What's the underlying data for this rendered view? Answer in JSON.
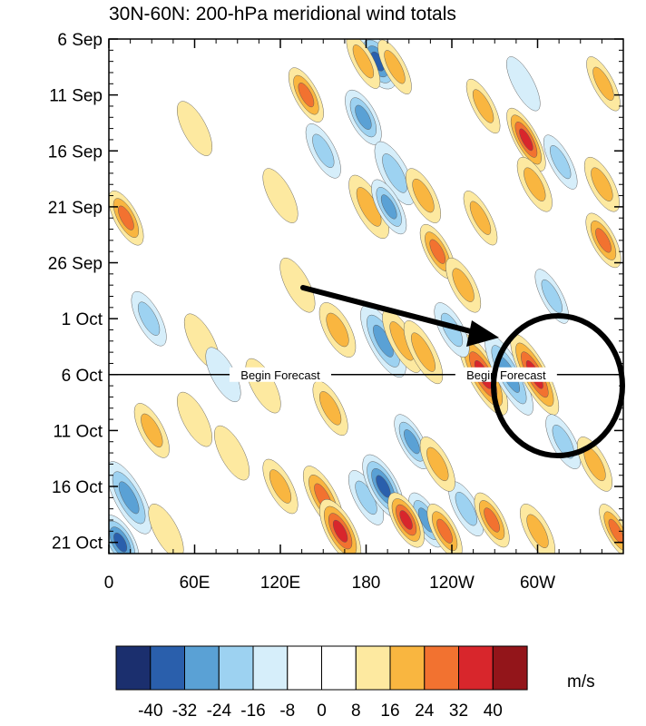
{
  "chart_data": {
    "type": "heatmap",
    "title": "30N-60N: 200-hPa meridional wind totals",
    "xlabel": "",
    "ylabel": "",
    "x_ticks": [
      "0",
      "60E",
      "120E",
      "180",
      "120W",
      "60W"
    ],
    "x_tick_lon": [
      0,
      60,
      120,
      180,
      240,
      300
    ],
    "xlim": [
      0,
      360
    ],
    "y_ticks": [
      "6 Sep",
      "11 Sep",
      "16 Sep",
      "21 Sep",
      "26 Sep",
      "1 Oct",
      "6 Oct",
      "11 Oct",
      "16 Oct",
      "21 Oct"
    ],
    "y_tick_day": [
      0,
      5,
      10,
      15,
      20,
      25,
      30,
      35,
      40,
      45
    ],
    "ylim_days": [
      0,
      46
    ],
    "forecast_line": {
      "day": 30,
      "labels": [
        "Begin Forecast",
        "Begin Forecast"
      ],
      "label_lon": [
        120,
        278
      ]
    },
    "units": "m/s",
    "colorbar": {
      "levels": [
        "-40",
        "-32",
        "-24",
        "-16",
        "-8",
        "0",
        "8",
        "16",
        "24",
        "32",
        "40"
      ],
      "colors": [
        "#1b2f6e",
        "#2a5fac",
        "#5aa1d5",
        "#9dd2f1",
        "#d6eefa",
        "#ffffff",
        "#ffffff",
        "#fde9a0",
        "#f9b640",
        "#f27230",
        "#d8262c",
        "#93151a"
      ]
    },
    "features": [
      {
        "lon": 262,
        "day": 30,
        "v": 34,
        "len": 4.5,
        "wid": 11
      },
      {
        "lon": 280,
        "day": 30,
        "v": -30,
        "len": 4.5,
        "wid": 10
      },
      {
        "lon": 298,
        "day": 30,
        "v": 38,
        "len": 4.5,
        "wid": 10
      },
      {
        "lon": 192,
        "day": 27,
        "v": -30,
        "len": 4,
        "wid": 11
      },
      {
        "lon": 205,
        "day": 27,
        "v": 22,
        "len": 3.5,
        "wid": 9
      },
      {
        "lon": 220,
        "day": 28,
        "v": 22,
        "len": 3.5,
        "wid": 9
      },
      {
        "lon": 160,
        "day": 26,
        "v": 18,
        "len": 3,
        "wid": 10
      },
      {
        "lon": 240,
        "day": 26,
        "v": -18,
        "len": 3,
        "wid": 9
      },
      {
        "lon": 188,
        "day": 2,
        "v": -36,
        "len": 3,
        "wid": 12
      },
      {
        "lon": 178,
        "day": 2,
        "v": 16,
        "len": 3,
        "wid": 8
      },
      {
        "lon": 200,
        "day": 2.5,
        "v": 20,
        "len": 3,
        "wid": 8
      },
      {
        "lon": 138,
        "day": 5,
        "v": 30,
        "len": 3,
        "wid": 9
      },
      {
        "lon": 178,
        "day": 7,
        "v": -30,
        "len": 3,
        "wid": 10
      },
      {
        "lon": 150,
        "day": 10,
        "v": -18,
        "len": 3,
        "wid": 9
      },
      {
        "lon": 200,
        "day": 12,
        "v": -22,
        "len": 3.5,
        "wid": 10
      },
      {
        "lon": 182,
        "day": 15,
        "v": 22,
        "len": 3.5,
        "wid": 10
      },
      {
        "lon": 220,
        "day": 14,
        "v": 18,
        "len": 3,
        "wid": 9
      },
      {
        "lon": 196,
        "day": 15,
        "v": -24,
        "len": 3,
        "wid": 9
      },
      {
        "lon": 292,
        "day": 9,
        "v": 32,
        "len": 3.5,
        "wid": 9
      },
      {
        "lon": 298,
        "day": 13,
        "v": 18,
        "len": 3,
        "wid": 9
      },
      {
        "lon": 316,
        "day": 11,
        "v": -22,
        "len": 3,
        "wid": 8
      },
      {
        "lon": 346,
        "day": 4,
        "v": 22,
        "len": 3,
        "wid": 8
      },
      {
        "lon": 345,
        "day": 13,
        "v": 22,
        "len": 3,
        "wid": 9
      },
      {
        "lon": 346,
        "day": 18,
        "v": 28,
        "len": 3,
        "wid": 9
      },
      {
        "lon": 310,
        "day": 23,
        "v": -18,
        "len": 3,
        "wid": 8
      },
      {
        "lon": 260,
        "day": 16,
        "v": 18,
        "len": 3,
        "wid": 8
      },
      {
        "lon": 230,
        "day": 19,
        "v": 24,
        "len": 3,
        "wid": 9
      },
      {
        "lon": 248,
        "day": 22,
        "v": 22,
        "len": 3,
        "wid": 9
      },
      {
        "lon": 120,
        "day": 14,
        "v": 14,
        "len": 3,
        "wid": 9
      },
      {
        "lon": 132,
        "day": 22,
        "v": 14,
        "len": 3,
        "wid": 9
      },
      {
        "lon": 262,
        "day": 6,
        "v": 16,
        "len": 3,
        "wid": 8
      },
      {
        "lon": 290,
        "day": 4,
        "v": -14,
        "len": 3,
        "wid": 8
      },
      {
        "lon": 12,
        "day": 16,
        "v": 30,
        "len": 3,
        "wid": 9
      },
      {
        "lon": 60,
        "day": 8,
        "v": 12,
        "len": 3,
        "wid": 9
      },
      {
        "lon": 28,
        "day": 25,
        "v": -18,
        "len": 3,
        "wid": 9
      },
      {
        "lon": 65,
        "day": 27,
        "v": 14,
        "len": 3,
        "wid": 9
      },
      {
        "lon": 30,
        "day": 35,
        "v": 20,
        "len": 3,
        "wid": 9
      },
      {
        "lon": 60,
        "day": 34,
        "v": 14,
        "len": 3,
        "wid": 9
      },
      {
        "lon": 14,
        "day": 41,
        "v": -30,
        "len": 4,
        "wid": 11
      },
      {
        "lon": 8,
        "day": 45,
        "v": -38,
        "len": 3,
        "wid": 11
      },
      {
        "lon": 40,
        "day": 44,
        "v": 12,
        "len": 3,
        "wid": 9
      },
      {
        "lon": 86,
        "day": 37,
        "v": 14,
        "len": 3,
        "wid": 9
      },
      {
        "lon": 120,
        "day": 40,
        "v": 18,
        "len": 3,
        "wid": 9
      },
      {
        "lon": 150,
        "day": 41,
        "v": 28,
        "len": 3.5,
        "wid": 10
      },
      {
        "lon": 162,
        "day": 44,
        "v": 36,
        "len": 3.5,
        "wid": 11
      },
      {
        "lon": 180,
        "day": 41,
        "v": -18,
        "len": 3,
        "wid": 9
      },
      {
        "lon": 192,
        "day": 40,
        "v": -32,
        "len": 3.5,
        "wid": 11
      },
      {
        "lon": 222,
        "day": 43,
        "v": -26,
        "len": 3,
        "wid": 9
      },
      {
        "lon": 208,
        "day": 43,
        "v": 36,
        "len": 3,
        "wid": 10
      },
      {
        "lon": 235,
        "day": 44,
        "v": 28,
        "len": 3,
        "wid": 9
      },
      {
        "lon": 250,
        "day": 42,
        "v": -20,
        "len": 3,
        "wid": 9
      },
      {
        "lon": 268,
        "day": 43,
        "v": 24,
        "len": 3,
        "wid": 9
      },
      {
        "lon": 300,
        "day": 44,
        "v": 22,
        "len": 3,
        "wid": 9
      },
      {
        "lon": 355,
        "day": 44,
        "v": 26,
        "len": 3,
        "wid": 8
      },
      {
        "lon": 212,
        "day": 36,
        "v": -26,
        "len": 3,
        "wid": 9
      },
      {
        "lon": 230,
        "day": 38,
        "v": 22,
        "len": 3,
        "wid": 9
      },
      {
        "lon": 318,
        "day": 36,
        "v": -16,
        "len": 3,
        "wid": 9
      },
      {
        "lon": 340,
        "day": 38,
        "v": 18,
        "len": 3,
        "wid": 9
      },
      {
        "lon": 108,
        "day": 31,
        "v": 14,
        "len": 3,
        "wid": 9
      },
      {
        "lon": 80,
        "day": 30,
        "v": -12,
        "len": 3,
        "wid": 9
      },
      {
        "lon": 155,
        "day": 33,
        "v": 16,
        "len": 3,
        "wid": 9
      }
    ]
  }
}
